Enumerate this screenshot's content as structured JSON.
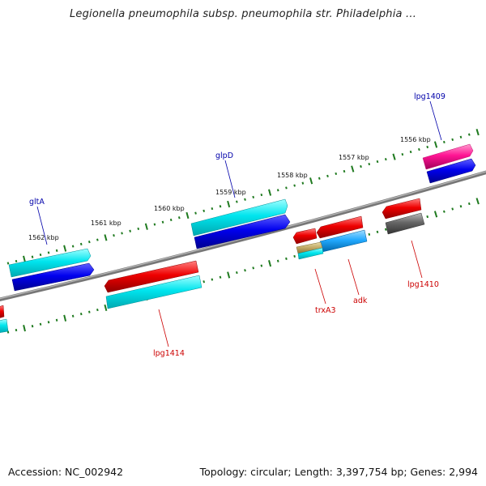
{
  "title": "Legionella pneumophila subsp. pneumophila str. Philadelphia ...",
  "footer": {
    "accession": "Accession: NC_002942",
    "stats": "Topology: circular; Length: 3,397,754 bp; Genes: 2,994"
  },
  "map": {
    "tick_labels": [
      "1556 kbp",
      "1557 kbp",
      "1558 kbp",
      "1559 kbp",
      "1560 kbp",
      "1561 kbp",
      "1562 kbp"
    ],
    "gene_labels": [
      "lpg1409",
      "glpD",
      "gltA",
      "lpg1410",
      "adk",
      "trxA3",
      "lpg1414"
    ],
    "colors": {
      "backbone": "#888888",
      "ticks": "#1f7a1f",
      "forward_label": "#0000aa",
      "reverse_label": "#cc0000",
      "cyan": "#00e5ee",
      "blue": "#0000ee",
      "red": "#ee0000",
      "magenta": "#ff1493",
      "gray": "#666666",
      "tan": "#c4ad6a",
      "light_blue": "#22aaff"
    }
  }
}
